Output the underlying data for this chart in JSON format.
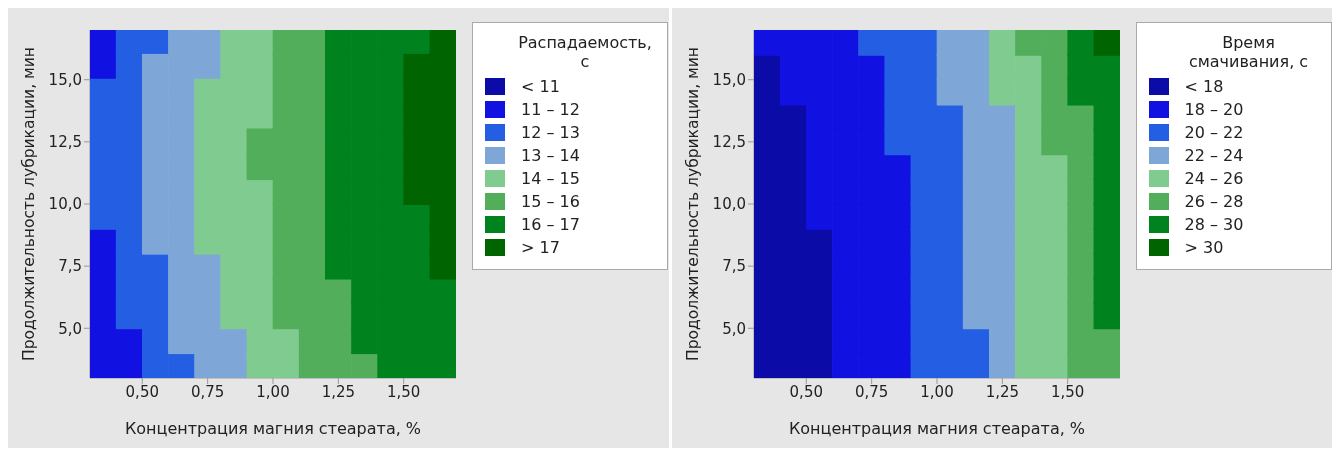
{
  "chart_data": [
    {
      "type": "scatter",
      "marker": "square",
      "xlabel": "Концентрация магния стеарата, %",
      "ylabel": "Продолжительность лубрикации, мин",
      "legend_title": "Распадаемость, с",
      "legend": "right",
      "xlim": [
        0.3,
        1.7
      ],
      "xticks": [
        {
          "value": 0.5,
          "label": "0,50"
        },
        {
          "value": 0.75,
          "label": "0,75"
        },
        {
          "value": 1.0,
          "label": "1,00"
        },
        {
          "value": 1.25,
          "label": "1,25"
        },
        {
          "value": 1.5,
          "label": "1,50"
        }
      ],
      "ylim": [
        3,
        17
      ],
      "yticks": [
        {
          "value": 5,
          "label": "5,0"
        },
        {
          "value": 7.5,
          "label": "7,5"
        },
        {
          "value": 10,
          "label": "10,0"
        },
        {
          "value": 12.5,
          "label": "12,5"
        },
        {
          "value": 15,
          "label": "15,0"
        }
      ],
      "series": [
        {
          "name": "< 11",
          "color": "#0b0ba8"
        },
        {
          "name": "11 – 12",
          "color": "#1111e2",
          "x": [
            0.35,
            0.35,
            0.35,
            0.35,
            0.35,
            0.35,
            0.35,
            0.45,
            0.35,
            0.45
          ],
          "values": [
            16.5,
            15.5,
            8.5,
            7.5,
            6.5,
            5.5,
            4.5,
            4.5,
            3.5,
            3.5
          ]
        },
        {
          "name": "12 – 13",
          "color": "#245ee2",
          "x": [
            0.45,
            0.55,
            0.45,
            0.35,
            0.45,
            0.35,
            0.45,
            0.35,
            0.45,
            0.35,
            0.45,
            0.35,
            0.45,
            0.35,
            0.45,
            0.45,
            0.45,
            0.55,
            0.45,
            0.55,
            0.45,
            0.55,
            0.55,
            0.55,
            0.65
          ],
          "values": [
            16.5,
            16.5,
            15.5,
            14.5,
            14.5,
            13.5,
            13.5,
            12.5,
            12.5,
            11.5,
            11.5,
            10.5,
            10.5,
            9.5,
            9.5,
            8.5,
            7.5,
            7.5,
            6.5,
            6.5,
            5.5,
            5.5,
            4.5,
            3.5,
            3.5
          ]
        },
        {
          "name": "13 – 14",
          "color": "#7ea7d8",
          "x": [
            0.65,
            0.75,
            0.55,
            0.65,
            0.75,
            0.55,
            0.65,
            0.55,
            0.65,
            0.55,
            0.65,
            0.55,
            0.65,
            0.55,
            0.65,
            0.55,
            0.65,
            0.55,
            0.65,
            0.65,
            0.75,
            0.65,
            0.75,
            0.65,
            0.75,
            0.65,
            0.75,
            0.85,
            0.75,
            0.85
          ],
          "values": [
            16.5,
            16.5,
            15.5,
            15.5,
            15.5,
            14.5,
            14.5,
            13.5,
            13.5,
            12.5,
            12.5,
            11.5,
            11.5,
            10.5,
            10.5,
            9.5,
            9.5,
            8.5,
            8.5,
            7.5,
            7.5,
            6.5,
            6.5,
            5.5,
            5.5,
            4.5,
            4.5,
            4.5,
            3.5,
            3.5
          ]
        },
        {
          "name": "14 – 15",
          "color": "#80cc90",
          "x": [
            0.85,
            0.95,
            0.85,
            0.95,
            0.75,
            0.85,
            0.95,
            0.75,
            0.85,
            0.95,
            0.75,
            0.85,
            0.75,
            0.85,
            0.75,
            0.85,
            0.95,
            0.75,
            0.85,
            0.95,
            0.75,
            0.85,
            0.95,
            0.85,
            0.95,
            0.85,
            0.95,
            0.85,
            0.95,
            0.95,
            1.05,
            0.95,
            1.05
          ],
          "values": [
            16.5,
            16.5,
            15.5,
            15.5,
            14.5,
            14.5,
            14.5,
            13.5,
            13.5,
            13.5,
            12.5,
            12.5,
            11.5,
            11.5,
            10.5,
            10.5,
            10.5,
            9.5,
            9.5,
            9.5,
            8.5,
            8.5,
            8.5,
            7.5,
            7.5,
            6.5,
            6.5,
            5.5,
            5.5,
            4.5,
            4.5,
            3.5,
            3.5
          ]
        },
        {
          "name": "15 – 16",
          "color": "#52ae5a",
          "x": [
            1.05,
            1.15,
            1.05,
            1.15,
            1.05,
            1.15,
            1.05,
            1.15,
            0.95,
            1.05,
            1.15,
            0.95,
            1.05,
            1.15,
            1.05,
            1.15,
            1.05,
            1.15,
            1.05,
            1.15,
            1.05,
            1.15,
            1.05,
            1.15,
            1.25,
            1.05,
            1.15,
            1.25,
            1.15,
            1.25,
            1.15,
            1.25,
            1.35
          ],
          "values": [
            16.5,
            16.5,
            15.5,
            15.5,
            14.5,
            14.5,
            13.5,
            13.5,
            12.5,
            12.5,
            12.5,
            11.5,
            11.5,
            11.5,
            10.5,
            10.5,
            9.5,
            9.5,
            8.5,
            8.5,
            7.5,
            7.5,
            6.5,
            6.5,
            6.5,
            5.5,
            5.5,
            5.5,
            4.5,
            4.5,
            3.5,
            3.5,
            3.5
          ]
        },
        {
          "name": "16 – 17",
          "color": "#00821f",
          "x": [
            1.25,
            1.35,
            1.45,
            1.55,
            1.25,
            1.35,
            1.45,
            1.25,
            1.35,
            1.45,
            1.25,
            1.35,
            1.45,
            1.25,
            1.35,
            1.45,
            1.25,
            1.35,
            1.45,
            1.25,
            1.35,
            1.45,
            1.25,
            1.35,
            1.45,
            1.55,
            1.25,
            1.35,
            1.45,
            1.55,
            1.25,
            1.35,
            1.45,
            1.55,
            1.35,
            1.45,
            1.55,
            1.65,
            1.35,
            1.45,
            1.55,
            1.65,
            1.35,
            1.45,
            1.55,
            1.65,
            1.45,
            1.55,
            1.65
          ],
          "values": [
            16.5,
            16.5,
            16.5,
            16.5,
            15.5,
            15.5,
            15.5,
            14.5,
            14.5,
            14.5,
            13.5,
            13.5,
            13.5,
            12.5,
            12.5,
            12.5,
            11.5,
            11.5,
            11.5,
            10.5,
            10.5,
            10.5,
            9.5,
            9.5,
            9.5,
            9.5,
            8.5,
            8.5,
            8.5,
            8.5,
            7.5,
            7.5,
            7.5,
            7.5,
            6.5,
            6.5,
            6.5,
            6.5,
            5.5,
            5.5,
            5.5,
            5.5,
            4.5,
            4.5,
            4.5,
            4.5,
            3.5,
            3.5,
            3.5
          ]
        },
        {
          "name": "> 17",
          "color": "#006400",
          "x": [
            1.65,
            1.55,
            1.65,
            1.55,
            1.65,
            1.55,
            1.65,
            1.55,
            1.65,
            1.55,
            1.65,
            1.55,
            1.65,
            1.65,
            1.65,
            1.65
          ],
          "values": [
            16.5,
            15.5,
            15.5,
            14.5,
            14.5,
            13.5,
            13.5,
            12.5,
            12.5,
            11.5,
            11.5,
            10.5,
            10.5,
            9.5,
            8.5,
            7.5
          ]
        }
      ]
    },
    {
      "type": "scatter",
      "marker": "square",
      "xlabel": "Концентрация магния стеарата, %",
      "ylabel": "Продолжительность лубрикации, мин",
      "legend_title": "Время смачивания, с",
      "legend": "right",
      "xlim": [
        0.3,
        1.7
      ],
      "xticks": [
        {
          "value": 0.5,
          "label": "0,50"
        },
        {
          "value": 0.75,
          "label": "0,75"
        },
        {
          "value": 1.0,
          "label": "1,00"
        },
        {
          "value": 1.25,
          "label": "1,25"
        },
        {
          "value": 1.5,
          "label": "1,50"
        }
      ],
      "ylim": [
        3,
        17
      ],
      "yticks": [
        {
          "value": 5,
          "label": "5,0"
        },
        {
          "value": 7.5,
          "label": "7,5"
        },
        {
          "value": 10,
          "label": "10,0"
        },
        {
          "value": 12.5,
          "label": "12,5"
        },
        {
          "value": 15,
          "label": "15,0"
        }
      ],
      "series": [
        {
          "name": "< 18",
          "color": "#0b0ba8",
          "x": [
            0.35,
            0.35,
            0.35,
            0.45,
            0.35,
            0.45,
            0.35,
            0.45,
            0.35,
            0.45,
            0.35,
            0.45,
            0.35,
            0.45,
            0.55,
            0.35,
            0.45,
            0.55,
            0.35,
            0.45,
            0.55,
            0.35,
            0.45,
            0.55,
            0.35,
            0.45,
            0.55,
            0.35,
            0.45,
            0.55
          ],
          "values": [
            15.5,
            14.5,
            13.5,
            13.5,
            12.5,
            12.5,
            11.5,
            11.5,
            10.5,
            10.5,
            9.5,
            9.5,
            8.5,
            8.5,
            8.5,
            7.5,
            7.5,
            7.5,
            6.5,
            6.5,
            6.5,
            5.5,
            5.5,
            5.5,
            4.5,
            4.5,
            4.5,
            3.5,
            3.5,
            3.5
          ]
        },
        {
          "name": "18 – 20",
          "color": "#1111e2",
          "x": [
            0.35,
            0.45,
            0.55,
            0.65,
            0.45,
            0.55,
            0.65,
            0.75,
            0.45,
            0.55,
            0.65,
            0.75,
            0.55,
            0.65,
            0.75,
            0.55,
            0.65,
            0.75,
            0.55,
            0.65,
            0.75,
            0.85,
            0.55,
            0.65,
            0.75,
            0.85,
            0.55,
            0.65,
            0.75,
            0.85,
            0.65,
            0.75,
            0.85,
            0.65,
            0.75,
            0.85,
            0.65,
            0.75,
            0.85,
            0.65,
            0.75,
            0.85,
            0.65,
            0.75,
            0.85,
            0.65,
            0.75,
            0.85
          ],
          "values": [
            16.5,
            16.5,
            16.5,
            16.5,
            15.5,
            15.5,
            15.5,
            15.5,
            14.5,
            14.5,
            14.5,
            14.5,
            13.5,
            13.5,
            13.5,
            12.5,
            12.5,
            12.5,
            11.5,
            11.5,
            11.5,
            11.5,
            10.5,
            10.5,
            10.5,
            10.5,
            9.5,
            9.5,
            9.5,
            9.5,
            8.5,
            8.5,
            8.5,
            7.5,
            7.5,
            7.5,
            6.5,
            6.5,
            6.5,
            5.5,
            5.5,
            5.5,
            4.5,
            4.5,
            4.5,
            3.5,
            3.5,
            3.5
          ]
        },
        {
          "name": "20 – 22",
          "color": "#245ee2",
          "x": [
            0.75,
            0.85,
            0.95,
            0.85,
            0.95,
            0.85,
            0.95,
            0.85,
            0.95,
            1.05,
            0.85,
            0.95,
            1.05,
            0.95,
            1.05,
            0.95,
            1.05,
            0.95,
            1.05,
            0.95,
            1.05,
            0.95,
            1.05,
            0.95,
            1.05,
            0.95,
            1.05,
            0.95,
            1.05,
            1.15,
            0.95,
            1.05,
            1.15
          ],
          "values": [
            16.5,
            16.5,
            16.5,
            15.5,
            15.5,
            14.5,
            14.5,
            13.5,
            13.5,
            13.5,
            12.5,
            12.5,
            12.5,
            11.5,
            11.5,
            10.5,
            10.5,
            9.5,
            9.5,
            8.5,
            8.5,
            7.5,
            7.5,
            6.5,
            6.5,
            5.5,
            5.5,
            4.5,
            4.5,
            4.5,
            3.5,
            3.5,
            3.5
          ]
        },
        {
          "name": "22 – 24",
          "color": "#7ea7d8",
          "x": [
            1.05,
            1.15,
            1.05,
            1.15,
            1.05,
            1.15,
            1.15,
            1.25,
            1.15,
            1.25,
            1.15,
            1.25,
            1.15,
            1.25,
            1.15,
            1.25,
            1.15,
            1.25,
            1.15,
            1.25,
            1.15,
            1.25,
            1.15,
            1.25,
            1.25,
            1.25
          ],
          "values": [
            16.5,
            16.5,
            15.5,
            15.5,
            14.5,
            14.5,
            13.5,
            13.5,
            12.5,
            12.5,
            11.5,
            11.5,
            10.5,
            10.5,
            9.5,
            9.5,
            8.5,
            8.5,
            7.5,
            7.5,
            6.5,
            6.5,
            5.5,
            5.5,
            4.5,
            3.5
          ]
        },
        {
          "name": "24 – 26",
          "color": "#80cc90",
          "x": [
            1.25,
            1.25,
            1.35,
            1.25,
            1.35,
            1.35,
            1.35,
            1.35,
            1.45,
            1.35,
            1.45,
            1.35,
            1.45,
            1.35,
            1.45,
            1.35,
            1.45,
            1.35,
            1.45,
            1.35,
            1.45,
            1.35,
            1.45,
            1.35,
            1.45
          ],
          "values": [
            16.5,
            15.5,
            15.5,
            14.5,
            14.5,
            13.5,
            12.5,
            11.5,
            11.5,
            10.5,
            10.5,
            9.5,
            9.5,
            8.5,
            8.5,
            7.5,
            7.5,
            6.5,
            6.5,
            5.5,
            5.5,
            4.5,
            4.5,
            3.5,
            3.5
          ]
        },
        {
          "name": "26 – 28",
          "color": "#52ae5a",
          "x": [
            1.35,
            1.45,
            1.45,
            1.45,
            1.45,
            1.55,
            1.45,
            1.55,
            1.55,
            1.55,
            1.55,
            1.55,
            1.55,
            1.55,
            1.55,
            1.55,
            1.65,
            1.55,
            1.65
          ],
          "values": [
            16.5,
            16.5,
            15.5,
            14.5,
            13.5,
            13.5,
            12.5,
            12.5,
            11.5,
            10.5,
            9.5,
            8.5,
            7.5,
            6.5,
            5.5,
            4.5,
            4.5,
            3.5,
            3.5
          ]
        },
        {
          "name": "28 – 30",
          "color": "#00821f",
          "x": [
            1.55,
            1.55,
            1.65,
            1.55,
            1.65,
            1.65,
            1.65,
            1.65,
            1.65,
            1.65,
            1.65,
            1.65,
            1.65,
            1.65
          ],
          "values": [
            16.5,
            15.5,
            15.5,
            14.5,
            14.5,
            13.5,
            12.5,
            11.5,
            10.5,
            9.5,
            8.5,
            7.5,
            6.5,
            5.5
          ]
        },
        {
          "name": "> 30",
          "color": "#006400",
          "x": [
            1.65
          ],
          "values": [
            16.5
          ]
        }
      ]
    }
  ]
}
